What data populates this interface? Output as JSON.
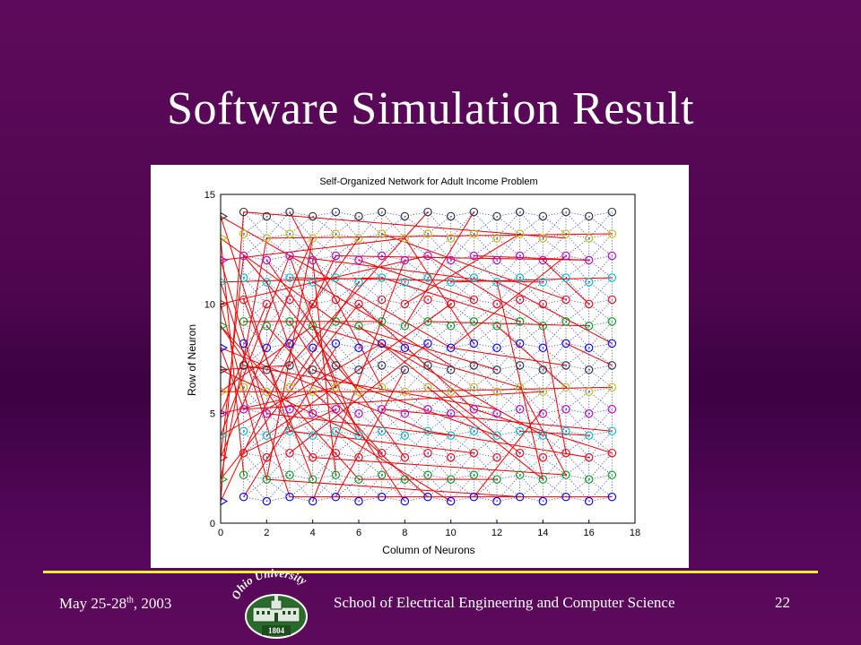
{
  "slide": {
    "title": "Software Simulation Result",
    "footer_date_main": "May 25-28",
    "footer_date_sup": "th",
    "footer_date_year": ", 2003",
    "footer_school": "School of Electrical Engineering and Computer Science",
    "page_number": "22",
    "logo": {
      "arc_text": "Ohio University",
      "year": "1804"
    }
  },
  "colors": {
    "background": "#5e0a5c",
    "rule": "#ffee33",
    "connection": "#ee0000",
    "neighbor_link": "#3344cc"
  },
  "chart_data": {
    "type": "scatter",
    "title": "Self-Organized Network for Adult Income Problem",
    "xlabel": "Column of Neurons",
    "ylabel": "Row of Neuron",
    "xlim": [
      0,
      18
    ],
    "ylim": [
      0,
      15
    ],
    "xticks": [
      0,
      2,
      4,
      6,
      8,
      10,
      12,
      14,
      16,
      18
    ],
    "yticks": [
      0,
      5,
      10,
      15
    ],
    "grid": false,
    "row_colors": [
      "#0000ff",
      "#00a000",
      "#ff0000",
      "#00c0c0",
      "#c000c0",
      "#c0c000",
      "#303030"
    ],
    "input_markers": {
      "x": 0,
      "y": [
        1,
        2,
        3,
        4,
        5,
        6,
        7,
        8,
        9,
        10,
        11,
        12,
        13,
        14
      ]
    },
    "neurons": {
      "odd_columns_rows": [
        1.2,
        2.2,
        3.2,
        4.2,
        5.2,
        6.2,
        7.2,
        8.2,
        9.2,
        10.2,
        11.2,
        12.2,
        13.2,
        14.2
      ],
      "even_columns_rows": [
        1,
        2,
        3,
        4,
        5,
        6,
        7,
        8,
        9,
        10,
        11,
        12,
        13,
        14
      ],
      "columns": [
        1,
        2,
        3,
        4,
        5,
        6,
        7,
        8,
        9,
        10,
        11,
        12,
        13,
        14,
        15,
        16,
        17
      ]
    },
    "connections": [
      [
        [
          0,
          1
        ],
        [
          1,
          14.2
        ]
      ],
      [
        [
          0,
          2
        ],
        [
          2,
          13
        ]
      ],
      [
        [
          0,
          3
        ],
        [
          1,
          12.2
        ]
      ],
      [
        [
          0,
          4
        ],
        [
          3,
          12.2
        ]
      ],
      [
        [
          0,
          5
        ],
        [
          2,
          10
        ]
      ],
      [
        [
          0,
          6
        ],
        [
          4,
          9
        ]
      ],
      [
        [
          0,
          7
        ],
        [
          3,
          7.2
        ]
      ],
      [
        [
          0,
          8
        ],
        [
          1,
          5.2
        ]
      ],
      [
        [
          0,
          9
        ],
        [
          4,
          3
        ]
      ],
      [
        [
          0,
          10
        ],
        [
          2,
          2
        ]
      ],
      [
        [
          0,
          11
        ],
        [
          3,
          1.2
        ]
      ],
      [
        [
          0,
          12
        ],
        [
          2,
          5
        ]
      ],
      [
        [
          0,
          13
        ],
        [
          1,
          2.2
        ]
      ],
      [
        [
          0,
          14
        ],
        [
          3,
          4.2
        ]
      ],
      [
        [
          0,
          1
        ],
        [
          5,
          12.2
        ]
      ],
      [
        [
          0,
          2
        ],
        [
          6,
          10
        ]
      ],
      [
        [
          0,
          4
        ],
        [
          7,
          8.2
        ]
      ],
      [
        [
          0,
          6
        ],
        [
          8,
          6
        ]
      ],
      [
        [
          0,
          8
        ],
        [
          9,
          4.2
        ]
      ],
      [
        [
          0,
          9
        ],
        [
          6,
          2
        ]
      ],
      [
        [
          0,
          11
        ],
        [
          7,
          11.2
        ]
      ],
      [
        [
          0,
          12
        ],
        [
          8,
          13
        ]
      ],
      [
        [
          0,
          13
        ],
        [
          5,
          9.2
        ]
      ],
      [
        [
          0,
          14
        ],
        [
          10,
          8
        ]
      ],
      [
        [
          0,
          3
        ],
        [
          4,
          13
        ]
      ],
      [
        [
          0,
          5
        ],
        [
          5,
          6.2
        ]
      ],
      [
        [
          0,
          7
        ],
        [
          6,
          4
        ]
      ],
      [
        [
          0,
          10
        ],
        [
          9,
          12.2
        ]
      ],
      [
        [
          1,
          14.2
        ],
        [
          15,
          13
        ]
      ],
      [
        [
          2,
          13
        ],
        [
          17,
          13.2
        ]
      ],
      [
        [
          3,
          12.2
        ],
        [
          12,
          11
        ]
      ],
      [
        [
          4,
          9
        ],
        [
          13,
          6.2
        ]
      ],
      [
        [
          5,
          12.2
        ],
        [
          16,
          12
        ]
      ],
      [
        [
          6,
          10
        ],
        [
          11,
          5.2
        ]
      ],
      [
        [
          7,
          8.2
        ],
        [
          14,
          4
        ]
      ],
      [
        [
          8,
          6
        ],
        [
          17,
          6.2
        ]
      ],
      [
        [
          9,
          4.2
        ],
        [
          16,
          3
        ]
      ],
      [
        [
          10,
          8
        ],
        [
          15,
          7.2
        ]
      ],
      [
        [
          11,
          5.2
        ],
        [
          17,
          3.2
        ]
      ],
      [
        [
          12,
          11
        ],
        [
          14,
          2
        ]
      ],
      [
        [
          1,
          5.2
        ],
        [
          14,
          6
        ]
      ],
      [
        [
          2,
          2
        ],
        [
          13,
          1.2
        ]
      ],
      [
        [
          3,
          1.2
        ],
        [
          17,
          1.2
        ]
      ],
      [
        [
          4,
          3
        ],
        [
          15,
          2.2
        ]
      ],
      [
        [
          6,
          2
        ],
        [
          12,
          2
        ]
      ],
      [
        [
          7,
          11.2
        ],
        [
          13,
          9.2
        ]
      ],
      [
        [
          8,
          13
        ],
        [
          11,
          8.2
        ]
      ],
      [
        [
          9,
          12.2
        ],
        [
          14,
          9
        ]
      ],
      [
        [
          5,
          9.2
        ],
        [
          12,
          7
        ]
      ],
      [
        [
          3,
          4.2
        ],
        [
          11,
          3.2
        ]
      ],
      [
        [
          2,
          5
        ],
        [
          10,
          4
        ]
      ],
      [
        [
          1,
          12.2
        ],
        [
          6,
          6
        ]
      ],
      [
        [
          3,
          7.2
        ],
        [
          9,
          14.2
        ]
      ],
      [
        [
          4,
          13
        ],
        [
          2,
          2
        ]
      ],
      [
        [
          5,
          6.2
        ],
        [
          3,
          12.2
        ]
      ],
      [
        [
          6,
          4
        ],
        [
          4,
          9
        ]
      ],
      [
        [
          10,
          8
        ],
        [
          15,
          12.2
        ]
      ],
      [
        [
          12,
          11
        ],
        [
          17,
          8.2
        ]
      ],
      [
        [
          14,
          9
        ],
        [
          15,
          3.2
        ]
      ],
      [
        [
          13,
          6.2
        ],
        [
          15,
          2.2
        ]
      ],
      [
        [
          8,
          10
        ],
        [
          13,
          13.2
        ]
      ],
      [
        [
          9,
          9.2
        ],
        [
          16,
          9
        ]
      ],
      [
        [
          11,
          12.2
        ],
        [
          16,
          12
        ]
      ],
      [
        [
          7,
          5.2
        ],
        [
          17,
          4.2
        ]
      ],
      [
        [
          1,
          1.2
        ],
        [
          5,
          8
        ]
      ],
      [
        [
          2,
          9
        ],
        [
          7,
          3.2
        ]
      ],
      [
        [
          3,
          9.2
        ],
        [
          8,
          1
        ]
      ],
      [
        [
          4,
          6
        ],
        [
          9,
          1.2
        ]
      ],
      [
        [
          5,
          4.2
        ],
        [
          10,
          1
        ]
      ],
      [
        [
          2,
          12
        ],
        [
          8,
          3
        ]
      ],
      [
        [
          4,
          11
        ],
        [
          10,
          7.2
        ]
      ],
      [
        [
          6,
          12
        ],
        [
          11,
          10.2
        ]
      ],
      [
        [
          1,
          7.2
        ],
        [
          12,
          5.2
        ]
      ],
      [
        [
          3,
          11.2
        ],
        [
          14,
          11
        ]
      ],
      [
        [
          5,
          1.2
        ],
        [
          8,
          7
        ]
      ],
      [
        [
          1,
          9.2
        ],
        [
          7,
          9.2
        ]
      ],
      [
        [
          2,
          7
        ],
        [
          6,
          13
        ]
      ],
      [
        [
          3,
          3.2
        ],
        [
          9,
          8.2
        ]
      ],
      [
        [
          4,
          1
        ],
        [
          8,
          12
        ]
      ],
      [
        [
          6,
          9
        ],
        [
          13,
          3.2
        ]
      ],
      [
        [
          7,
          13.2
        ],
        [
          15,
          10.2
        ]
      ],
      [
        [
          1,
          3.2
        ],
        [
          5,
          5.2
        ]
      ],
      [
        [
          2,
          4
        ],
        [
          10,
          10
        ]
      ],
      [
        [
          3,
          14.2
        ],
        [
          7,
          6.2
        ]
      ],
      [
        [
          4,
          7
        ],
        [
          12,
          4
        ]
      ],
      [
        [
          1,
          10.2
        ],
        [
          4,
          2
        ]
      ],
      [
        [
          2,
          11
        ],
        [
          4,
          5
        ]
      ],
      [
        [
          3,
          6.2
        ],
        [
          6,
          11
        ]
      ],
      [
        [
          4,
          12
        ],
        [
          5,
          2.2
        ]
      ],
      [
        [
          11,
          1.2
        ],
        [
          14,
          5.2
        ]
      ],
      [
        [
          12,
          9
        ],
        [
          15,
          6.2
        ]
      ],
      [
        [
          13,
          4.2
        ],
        [
          16,
          4
        ]
      ],
      [
        [
          9,
          6.2
        ],
        [
          14,
          2
        ]
      ],
      [
        [
          10,
          11
        ],
        [
          17,
          11.2
        ]
      ],
      [
        [
          8,
          9
        ],
        [
          11,
          14.2
        ]
      ],
      [
        [
          15,
          8.2
        ],
        [
          17,
          7.2
        ]
      ],
      [
        [
          14,
          12
        ],
        [
          16,
          10
        ]
      ]
    ],
    "neighbor_links_note": "dotted lattice between adjacent neurons"
  }
}
